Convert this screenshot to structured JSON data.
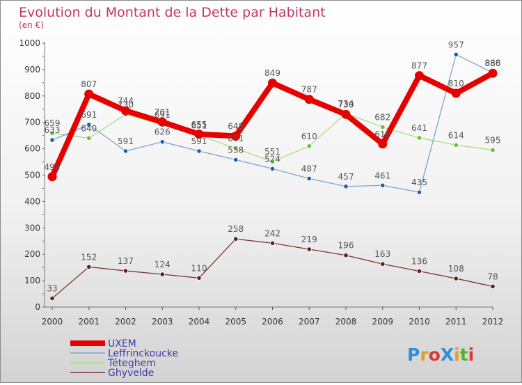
{
  "chart_data": {
    "type": "line",
    "title": "Evolution du Montant de la Dette par Habitant",
    "subtitle": "(en €)",
    "categories": [
      "2000",
      "2001",
      "2002",
      "2003",
      "2004",
      "2005",
      "2006",
      "2007",
      "2008",
      "2009",
      "2010",
      "2011",
      "2012"
    ],
    "ylim": [
      0,
      1000
    ],
    "yticks": [
      0,
      100,
      200,
      300,
      400,
      500,
      600,
      700,
      800,
      900,
      1000
    ],
    "grid": false,
    "legend_position": "bottom-left",
    "series": [
      {
        "name": "UXEM",
        "color": "#e60000",
        "marker": "#e60000",
        "values": [
          494,
          807,
          744,
          701,
          655,
          648,
          849,
          787,
          730,
          618,
          877,
          810,
          886
        ]
      },
      {
        "name": "Leffrinckoucke",
        "color": "#7aa5cc",
        "marker": "#1e5fa8",
        "values": [
          633,
          691,
          591,
          626,
          591,
          558,
          524,
          487,
          457,
          461,
          435,
          957,
          888
        ]
      },
      {
        "name": "Téteghem",
        "color": "#a4e07a",
        "marker": "#63c232",
        "values": [
          659,
          640,
          730,
          691,
          651,
          601,
          551,
          610,
          734,
          682,
          641,
          614,
          595
        ]
      },
      {
        "name": "Ghyvelde",
        "color": "#7a3535",
        "marker": "#5c1e1e",
        "values": [
          33,
          152,
          137,
          124,
          110,
          258,
          242,
          219,
          196,
          163,
          136,
          108,
          78
        ]
      }
    ]
  },
  "logo": {
    "text": "ProXiti",
    "letter_colors": [
      "#2e8fd8",
      "#e0a020",
      "#d83838",
      "#2e8fd8",
      "#e0a020",
      "#58b030",
      "#d83838"
    ]
  }
}
